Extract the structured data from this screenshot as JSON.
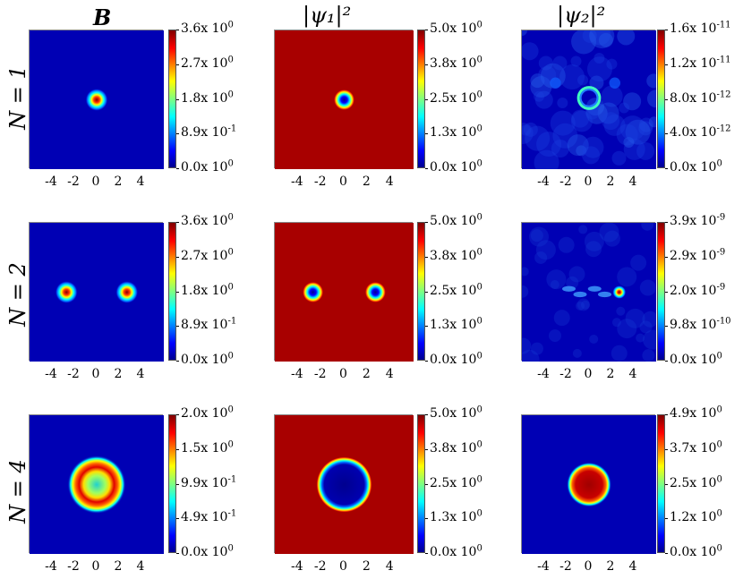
{
  "column_titles": [
    "B",
    "|ψ₁|²",
    "|ψ₂|²"
  ],
  "row_labels": [
    "N = 1",
    "N = 2",
    "N = 4"
  ],
  "x_ticks": [
    "-4",
    "-2",
    "0",
    "2",
    "4"
  ],
  "chart_data": [
    {
      "type": "heatmap",
      "row": "N = 1",
      "column": "B",
      "colorbar_ticks": [
        [
          "0.0",
          "0"
        ],
        [
          "8.9",
          "-1"
        ],
        [
          "1.8",
          "0"
        ],
        [
          "2.7",
          "0"
        ],
        [
          "3.6",
          "0"
        ]
      ],
      "feature": "single central bright spot",
      "xlim": [
        -6,
        6
      ]
    },
    {
      "type": "heatmap",
      "row": "N = 1",
      "column": "|ψ₁|²",
      "colorbar_ticks": [
        [
          "0.0",
          "0"
        ],
        [
          "1.3",
          "0"
        ],
        [
          "2.5",
          "0"
        ],
        [
          "3.8",
          "0"
        ],
        [
          "5.0",
          "0"
        ]
      ],
      "feature": "uniform high background with central dip",
      "xlim": [
        -6,
        6
      ]
    },
    {
      "type": "heatmap",
      "row": "N = 1",
      "column": "|ψ₂|²",
      "colorbar_ticks": [
        [
          "0.0",
          "0"
        ],
        [
          "4.0",
          "-12"
        ],
        [
          "8.0",
          "-12"
        ],
        [
          "1.2",
          "-11"
        ],
        [
          "1.6",
          "-11"
        ]
      ],
      "feature": "noisy background with central ring",
      "xlim": [
        -6,
        6
      ]
    },
    {
      "type": "heatmap",
      "row": "N = 2",
      "column": "B",
      "colorbar_ticks": [
        [
          "0.0",
          "0"
        ],
        [
          "8.9",
          "-1"
        ],
        [
          "1.8",
          "0"
        ],
        [
          "2.7",
          "0"
        ],
        [
          "3.6",
          "0"
        ]
      ],
      "feature": "two spots at x ≈ -2.7 and x ≈ 2.7",
      "xlim": [
        -6,
        6
      ]
    },
    {
      "type": "heatmap",
      "row": "N = 2",
      "column": "|ψ₁|²",
      "colorbar_ticks": [
        [
          "0.0",
          "0"
        ],
        [
          "1.3",
          "0"
        ],
        [
          "2.5",
          "0"
        ],
        [
          "3.8",
          "0"
        ],
        [
          "5.0",
          "0"
        ]
      ],
      "feature": "uniform high background with two dips",
      "xlim": [
        -6,
        6
      ]
    },
    {
      "type": "heatmap",
      "row": "N = 2",
      "column": "|ψ₂|²",
      "colorbar_ticks": [
        [
          "0.0",
          "0"
        ],
        [
          "9.8",
          "-10"
        ],
        [
          "2.0",
          "-9"
        ],
        [
          "2.9",
          "-9"
        ],
        [
          "3.9",
          "-9"
        ]
      ],
      "feature": "faint structures with peak near x ≈ 2.7",
      "xlim": [
        -6,
        6
      ]
    },
    {
      "type": "heatmap",
      "row": "N = 4",
      "column": "B",
      "colorbar_ticks": [
        [
          "0.0",
          "0"
        ],
        [
          "4.9",
          "-1"
        ],
        [
          "9.9",
          "-1"
        ],
        [
          "1.5",
          "0"
        ],
        [
          "2.0",
          "0"
        ]
      ],
      "feature": "ring of radius ≈ 1.5",
      "xlim": [
        -6,
        6
      ]
    },
    {
      "type": "heatmap",
      "row": "N = 4",
      "column": "|ψ₁|²",
      "colorbar_ticks": [
        [
          "0.0",
          "0"
        ],
        [
          "1.3",
          "0"
        ],
        [
          "2.5",
          "0"
        ],
        [
          "3.8",
          "0"
        ],
        [
          "5.0",
          "0"
        ]
      ],
      "feature": "uniform high background with central disk of zero",
      "xlim": [
        -6,
        6
      ]
    },
    {
      "type": "heatmap",
      "row": "N = 4",
      "column": "|ψ₂|²",
      "colorbar_ticks": [
        [
          "0.0",
          "0"
        ],
        [
          "1.2",
          "0"
        ],
        [
          "2.5",
          "0"
        ],
        [
          "3.7",
          "0"
        ],
        [
          "4.9",
          "0"
        ]
      ],
      "feature": "central disk of high value",
      "xlim": [
        -6,
        6
      ]
    }
  ]
}
